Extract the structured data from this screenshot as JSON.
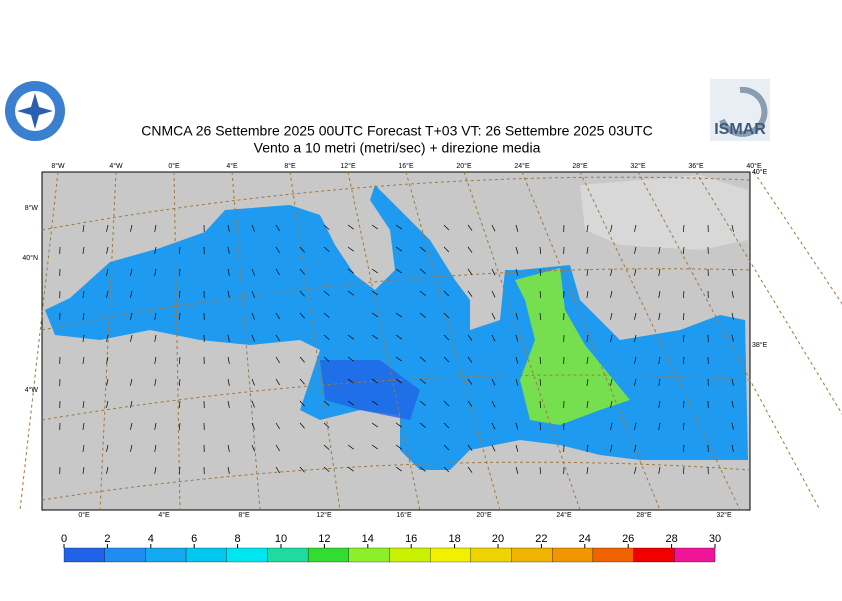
{
  "header": {
    "title": "CNMCA 26 Settembre 2025 00UTC Forecast T+03 VT: 26 Settembre 2025 03UTC",
    "subtitle": "Vento a 10 metri (metri/sec) + direzione media",
    "logo_right": "ISMAR"
  },
  "map": {
    "top_labels": [
      "8°W",
      "4°W",
      "0°E",
      "4°E",
      "8°E",
      "12°E",
      "16°E",
      "20°E",
      "24°E",
      "28°E",
      "32°E",
      "36°E",
      "40°E"
    ],
    "bottom_labels": [
      "0°E",
      "4°E",
      "8°E",
      "12°E",
      "16°E",
      "20°E",
      "24°E",
      "28°E",
      "32°E"
    ],
    "left_labels": [
      "8°W",
      "40°N",
      "4°W"
    ],
    "right_labels": [
      "40°E",
      "38°E"
    ]
  },
  "colorbar": {
    "ticks": [
      0,
      2,
      4,
      6,
      8,
      10,
      12,
      14,
      16,
      18,
      20,
      22,
      24,
      26,
      28,
      30
    ],
    "colors": [
      "#1f64e6",
      "#1e8cf0",
      "#14aaf0",
      "#00c8f0",
      "#00e6f0",
      "#1edca0",
      "#32dc32",
      "#8cf028",
      "#c8f000",
      "#f0f000",
      "#f0d200",
      "#f0b400",
      "#f09600",
      "#f06400",
      "#f00000",
      "#f01496"
    ]
  }
}
